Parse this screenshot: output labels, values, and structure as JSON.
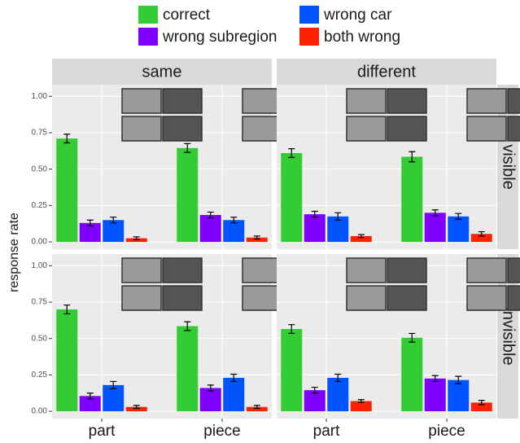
{
  "chart_data": {
    "type": "bar",
    "ylabel": "response rate",
    "series": [
      {
        "name": "correct",
        "color": "#33cc33"
      },
      {
        "name": "wrong subregion",
        "color": "#8000ff"
      },
      {
        "name": "wrong car",
        "color": "#0055ff"
      },
      {
        "name": "both wrong",
        "color": "#ff2200"
      }
    ],
    "facet_columns": [
      "same",
      "different"
    ],
    "facet_rows": [
      "visible",
      "invisible"
    ],
    "categories": [
      "part",
      "piece"
    ],
    "ylim": [
      -0.05,
      1.08
    ],
    "yticks": [
      {
        "value": 0,
        "label": "0.00"
      },
      {
        "value": 0.25,
        "label": "0.25"
      },
      {
        "value": 0.5,
        "label": "0.50"
      },
      {
        "value": 0.75,
        "label": "0.75"
      },
      {
        "value": 1,
        "label": "1.00"
      }
    ],
    "grid": true,
    "panels": [
      {
        "series": [
          {
            "values": [
              0.71,
              0.645
            ],
            "errors": [
              0.03,
              0.03
            ]
          },
          {
            "values": [
              0.13,
              0.185
            ],
            "errors": [
              0.02,
              0.02
            ]
          },
          {
            "values": [
              0.15,
              0.15
            ],
            "errors": [
              0.02,
              0.02
            ]
          },
          {
            "values": [
              0.025,
              0.03
            ],
            "errors": [
              0.01,
              0.01
            ]
          }
        ]
      },
      {
        "series": [
          {
            "values": [
              0.61,
              0.585
            ],
            "errors": [
              0.03,
              0.035
            ]
          },
          {
            "values": [
              0.19,
              0.2
            ],
            "errors": [
              0.02,
              0.02
            ]
          },
          {
            "values": [
              0.175,
              0.175
            ],
            "errors": [
              0.025,
              0.02
            ]
          },
          {
            "values": [
              0.04,
              0.055
            ],
            "errors": [
              0.01,
              0.015
            ]
          }
        ]
      },
      {
        "series": [
          {
            "values": [
              0.7,
              0.585
            ],
            "errors": [
              0.03,
              0.03
            ]
          },
          {
            "values": [
              0.105,
              0.16
            ],
            "errors": [
              0.02,
              0.02
            ]
          },
          {
            "values": [
              0.18,
              0.23
            ],
            "errors": [
              0.025,
              0.025
            ]
          },
          {
            "values": [
              0.03,
              0.03
            ],
            "errors": [
              0.01,
              0.01
            ]
          }
        ]
      },
      {
        "series": [
          {
            "values": [
              0.565,
              0.505
            ],
            "errors": [
              0.03,
              0.03
            ]
          },
          {
            "values": [
              0.145,
              0.225
            ],
            "errors": [
              0.02,
              0.02
            ]
          },
          {
            "values": [
              0.23,
              0.215
            ],
            "errors": [
              0.025,
              0.025
            ]
          },
          {
            "values": [
              0.07,
              0.06
            ],
            "errors": [
              0.01,
              0.015
            ]
          }
        ]
      }
    ]
  }
}
